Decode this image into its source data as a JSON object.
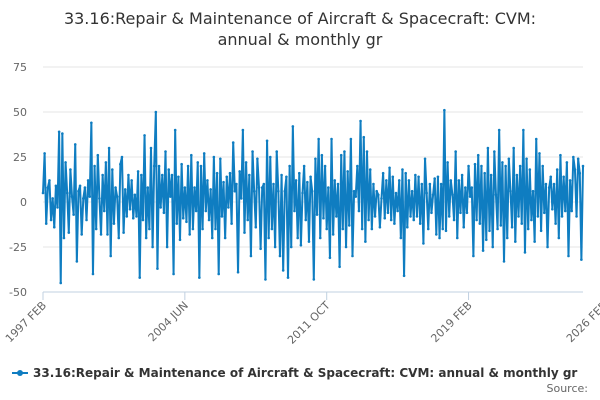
{
  "chart_data": {
    "type": "line",
    "title_lines": [
      "33.16:Repair & Maintenance of Aircraft & Spacecraft: CVM:",
      "annual & monthly gr"
    ],
    "xlabel": "",
    "ylabel": "",
    "ylim": [
      -50,
      75
    ],
    "yticks": [
      -50,
      -25,
      0,
      25,
      50,
      75
    ],
    "x_start": "1997-02",
    "x_end": "2026-02",
    "x_tick_labels": [
      "1997 FEB",
      "2004 JUN",
      "2011 OCT",
      "2019 FEB",
      "2026 FEB"
    ],
    "x_tick_positions": [
      0,
      88,
      176,
      264,
      348
    ],
    "grid": true,
    "legend_position": "bottom-left",
    "series": [
      {
        "name": "33.16:Repair & Maintenance of Aircraft & Spacecraft: CVM: annual & monthly gr",
        "color": "#0f7dc1",
        "values": [
          5,
          27,
          -12,
          8,
          12,
          -10,
          2,
          -14,
          9,
          -3,
          39,
          -45,
          38,
          -20,
          22,
          5,
          -17,
          18,
          3,
          -7,
          32,
          -33,
          6,
          9,
          -18,
          2,
          8,
          -10,
          12,
          3,
          44,
          -40,
          20,
          -15,
          26,
          2,
          -18,
          15,
          -5,
          22,
          -18,
          30,
          -30,
          18,
          -12,
          8,
          3,
          -20,
          21,
          25,
          -17,
          7,
          -8,
          15,
          -4,
          12,
          -9,
          4,
          -8,
          17,
          -42,
          15,
          -10,
          37,
          -20,
          8,
          -15,
          30,
          -25,
          20,
          50,
          -37,
          20,
          -3,
          15,
          -6,
          28,
          -25,
          18,
          3,
          15,
          -40,
          40,
          -12,
          14,
          -21,
          21,
          -9,
          8,
          -11,
          20,
          -18,
          26,
          -15,
          8,
          -5,
          22,
          -42,
          20,
          -15,
          27,
          -5,
          12,
          -10,
          7,
          -20,
          25,
          -15,
          16,
          -40,
          24,
          -8,
          11,
          -20,
          14,
          -3,
          16,
          -12,
          33,
          6,
          10,
          -39,
          17,
          2,
          40,
          -17,
          22,
          -10,
          15,
          -30,
          28,
          6,
          -14,
          24,
          8,
          -26,
          8,
          10,
          -43,
          34,
          -20,
          25,
          -15,
          10,
          -25,
          28,
          6,
          -30,
          15,
          -38,
          6,
          14,
          -42,
          20,
          -25,
          42,
          -5,
          12,
          -20,
          16,
          -24,
          5,
          20,
          -10,
          11,
          -22,
          14,
          6,
          -43,
          24,
          -7,
          35,
          -20,
          26,
          -9,
          20,
          -15,
          8,
          -31,
          35,
          -18,
          12,
          -8,
          10,
          -36,
          26,
          -15,
          28,
          -25,
          17,
          -13,
          35,
          -30,
          6,
          3,
          20,
          -5,
          45,
          -15,
          36,
          -22,
          28,
          -10,
          18,
          -15,
          10,
          -8,
          6,
          4,
          -14,
          2,
          16,
          -9,
          12,
          -6,
          19,
          -10,
          14,
          -12,
          5,
          -5,
          12,
          -20,
          18,
          -41,
          16,
          -14,
          12,
          -8,
          6,
          -10,
          15,
          -8,
          14,
          -12,
          10,
          -23,
          24,
          5,
          -15,
          10,
          -6,
          4,
          13,
          -18,
          14,
          -20,
          10,
          -15,
          51,
          -16,
          22,
          -8,
          12,
          4,
          -10,
          28,
          -20,
          12,
          -6,
          15,
          -14,
          8,
          -6,
          20,
          3,
          8,
          -30,
          21,
          -10,
          26,
          -12,
          20,
          -27,
          16,
          -21,
          30,
          -16,
          15,
          -25,
          28,
          4,
          -15,
          40,
          -13,
          22,
          -33,
          20,
          -20,
          24,
          6,
          -14,
          30,
          -22,
          15,
          -8,
          20,
          -12,
          40,
          -28,
          24,
          -15,
          18,
          -10,
          6,
          -22,
          35,
          -8,
          27,
          -16,
          20,
          -6,
          10,
          -25,
          8,
          14,
          -4,
          10,
          -12,
          18,
          -20,
          26,
          -8,
          14,
          -5,
          22,
          -30,
          12,
          -5,
          25,
          18,
          -8,
          24,
          16,
          -32,
          20
        ]
      }
    ]
  },
  "legend": {
    "label": "33.16:Repair & Maintenance of Aircraft & Spacecraft: CVM: annual & monthly gr"
  },
  "source": {
    "label": "Source:"
  }
}
